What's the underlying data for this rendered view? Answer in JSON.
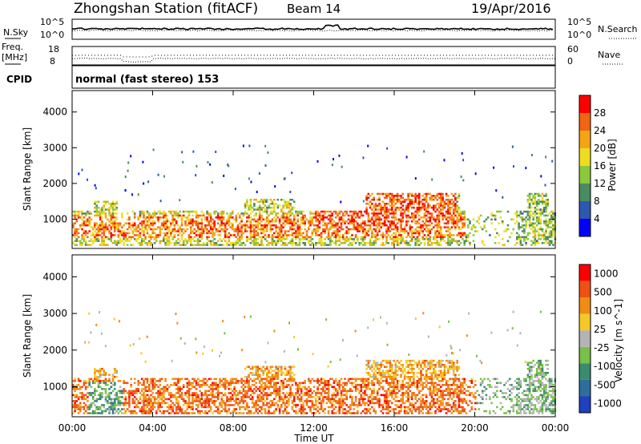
{
  "header": {
    "title": "Zhongshan Station (fitACF)",
    "beam": "Beam 14",
    "date": "19/Apr/2016"
  },
  "sky_panel": {
    "left_label": "N.Sky",
    "right_label": "N.Search",
    "ticks_left": [
      "10^5",
      "10^0"
    ],
    "ticks_right": [
      "10^5",
      "10^0"
    ]
  },
  "freq_panel": {
    "left_label_1": "Freq.",
    "left_label_2": "[MHz]",
    "right_label": "Nave",
    "ticks_left": [
      "18",
      "8"
    ],
    "ticks_right": [
      "60",
      "0"
    ]
  },
  "cpid": {
    "label": "CPID",
    "text": "normal (fast stereo) 153"
  },
  "chart_data": [
    {
      "type": "heatmap",
      "quantity": "Power",
      "ylabel": "Slant Range [km]",
      "colorbar_label": "Power [dB]",
      "colorbar_ticks": [
        "4",
        "8",
        "12",
        "16",
        "20",
        "24",
        "28"
      ],
      "colors": [
        "#0000ff",
        "#2e57b0",
        "#4a8c62",
        "#8cc83c",
        "#f0dc1e",
        "#f5a514",
        "#f06414",
        "#ff0000"
      ],
      "ylim": [
        180,
        4600
      ],
      "yticks": [
        "1000",
        "2000",
        "3000",
        "4000"
      ],
      "x_range_ut": [
        "00:00",
        "24:00"
      ]
    },
    {
      "type": "heatmap",
      "quantity": "Velocity",
      "ylabel": "Slant Range [km]",
      "colorbar_label": "Velocity [m s^-1]",
      "colorbar_ticks": [
        "1000",
        "500",
        "100",
        "25",
        "-25",
        "-100",
        "-500",
        "-1000"
      ],
      "colors": [
        "#2040c0",
        "#2e6e9c",
        "#3a8c6e",
        "#78c046",
        "#b4b4b4",
        "#f5c828",
        "#f08c14",
        "#f05014",
        "#ff0000"
      ],
      "ylim": [
        180,
        4600
      ],
      "yticks": [
        "1000",
        "2000",
        "3000",
        "4000"
      ],
      "x_range_ut": [
        "00:00",
        "24:00"
      ]
    }
  ],
  "x_axis": {
    "ticks": [
      "00:00",
      "04:00",
      "08:00",
      "12:00",
      "16:00",
      "20:00",
      "00:00"
    ],
    "label": "Time UT"
  },
  "colors": {
    "grid": "#000000",
    "background": "#ffffff"
  }
}
